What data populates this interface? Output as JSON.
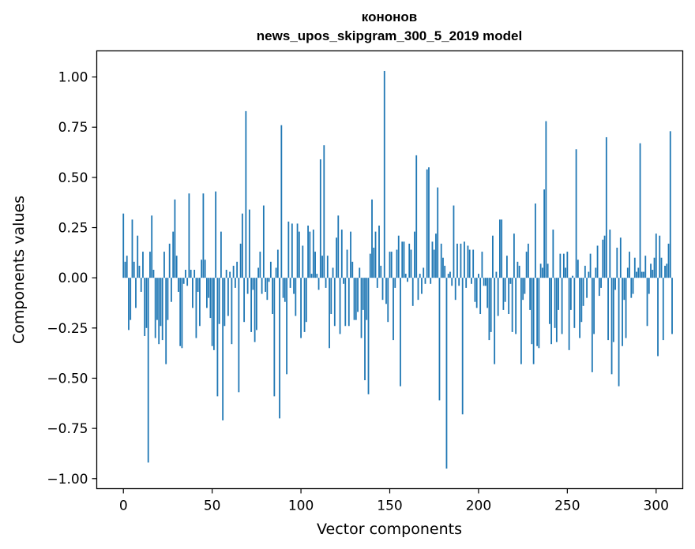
{
  "chart_data": {
    "type": "bar",
    "title_line1": "кононов",
    "title_line2": "news_upos_skipgram_300_5_2019 model",
    "xlabel": "Vector components",
    "ylabel": "Components values",
    "xlim": [
      -15,
      315
    ],
    "ylim": [
      -1.05,
      1.13
    ],
    "xticks": [
      0,
      50,
      100,
      150,
      200,
      250,
      300
    ],
    "yticks": [
      1.0,
      0.75,
      0.5,
      0.25,
      0.0,
      -0.25,
      -0.5,
      -0.75,
      -1.0
    ],
    "ytick_labels": [
      "1.00",
      "0.75",
      "0.50",
      "0.25",
      "0.00",
      "−0.25",
      "−0.50",
      "−0.75",
      "−1.00"
    ],
    "bar_color": "#1f77b4",
    "grid": false,
    "values": [
      0.32,
      0.08,
      0.11,
      -0.26,
      -0.21,
      0.29,
      0.08,
      -0.15,
      0.21,
      0.06,
      -0.07,
      0.13,
      -0.29,
      -0.25,
      -0.92,
      0.13,
      0.31,
      0.04,
      -0.3,
      -0.21,
      -0.33,
      -0.24,
      -0.31,
      0.13,
      -0.43,
      -0.21,
      0.17,
      -0.12,
      0.23,
      0.39,
      0.11,
      -0.07,
      -0.34,
      -0.35,
      -0.03,
      0.04,
      -0.04,
      0.42,
      0.04,
      -0.15,
      0.04,
      -0.3,
      -0.07,
      -0.24,
      0.09,
      0.42,
      0.09,
      -0.15,
      -0.1,
      -0.2,
      -0.34,
      -0.36,
      0.43,
      -0.59,
      -0.23,
      0.23,
      -0.71,
      -0.24,
      0.04,
      -0.19,
      0.03,
      -0.33,
      0.06,
      -0.05,
      0.08,
      -0.57,
      0.17,
      0.32,
      -0.22,
      0.83,
      -0.08,
      0.34,
      -0.27,
      -0.06,
      -0.32,
      -0.26,
      0.05,
      0.13,
      -0.08,
      0.36,
      -0.07,
      -0.11,
      -0.02,
      0.08,
      -0.18,
      -0.59,
      0.05,
      0.14,
      -0.7,
      0.76,
      -0.1,
      -0.12,
      -0.48,
      0.28,
      -0.05,
      0.27,
      -0.08,
      -0.19,
      0.27,
      0.23,
      -0.3,
      0.16,
      -0.27,
      -0.22,
      0.26,
      0.23,
      0.02,
      0.24,
      0.13,
      0.02,
      -0.06,
      0.59,
      0.11,
      0.66,
      -0.05,
      0.11,
      -0.35,
      -0.18,
      0.05,
      -0.24,
      0.2,
      0.31,
      -0.28,
      0.24,
      -0.03,
      -0.24,
      0.14,
      -0.24,
      0.23,
      0.08,
      -0.21,
      -0.21,
      -0.17,
      0.05,
      -0.3,
      -0.16,
      -0.51,
      -0.21,
      -0.58,
      0.12,
      0.39,
      0.15,
      0.23,
      -0.05,
      0.26,
      0.06,
      -0.11,
      1.03,
      -0.13,
      -0.22,
      0.13,
      0.13,
      -0.31,
      -0.05,
      0.14,
      0.21,
      -0.54,
      0.18,
      0.18,
      0.02,
      -0.02,
      0.17,
      0.14,
      -0.14,
      0.23,
      0.61,
      -0.11,
      0.02,
      -0.08,
      0.05,
      -0.03,
      0.54,
      0.55,
      -0.03,
      0.18,
      0.14,
      0.22,
      0.45,
      -0.61,
      0.17,
      0.1,
      0.06,
      -0.95,
      0.02,
      0.03,
      -0.04,
      0.36,
      -0.11,
      0.17,
      -0.04,
      0.17,
      -0.68,
      0.18,
      -0.05,
      0.16,
      0.14,
      -0.03,
      0.14,
      -0.12,
      -0.15,
      0.02,
      -0.18,
      0.13,
      -0.04,
      -0.04,
      -0.15,
      -0.31,
      -0.27,
      0.21,
      -0.43,
      0.03,
      -0.19,
      0.29,
      0.29,
      -0.16,
      -0.12,
      0.11,
      -0.18,
      -0.03,
      -0.27,
      0.22,
      -0.28,
      0.08,
      0.06,
      -0.43,
      -0.11,
      -0.08,
      0.13,
      0.17,
      -0.16,
      -0.33,
      -0.43,
      0.37,
      -0.34,
      -0.35,
      0.07,
      0.05,
      0.44,
      0.78,
      0.07,
      -0.23,
      -0.33,
      0.24,
      -0.25,
      -0.32,
      -0.16,
      0.12,
      -0.28,
      0.12,
      0.05,
      0.13,
      -0.36,
      -0.16,
      0.01,
      -0.25,
      0.64,
      0.09,
      -0.3,
      -0.22,
      -0.14,
      0.06,
      -0.1,
      0.03,
      0.12,
      -0.47,
      -0.28,
      0.05,
      0.16,
      -0.09,
      -0.05,
      0.19,
      0.21,
      0.7,
      -0.31,
      0.24,
      -0.48,
      -0.32,
      -0.06,
      0.15,
      -0.54,
      0.2,
      -0.34,
      -0.11,
      -0.3,
      0.05,
      0.13,
      -0.1,
      -0.08,
      0.1,
      0.03,
      0.05,
      0.67,
      0.03,
      0.03,
      0.11,
      -0.24,
      -0.08,
      0.07,
      0.04,
      0.1,
      0.22,
      -0.39,
      0.21,
      0.1,
      -0.31,
      0.06,
      0.07,
      0.17,
      0.73,
      -0.28
    ]
  }
}
